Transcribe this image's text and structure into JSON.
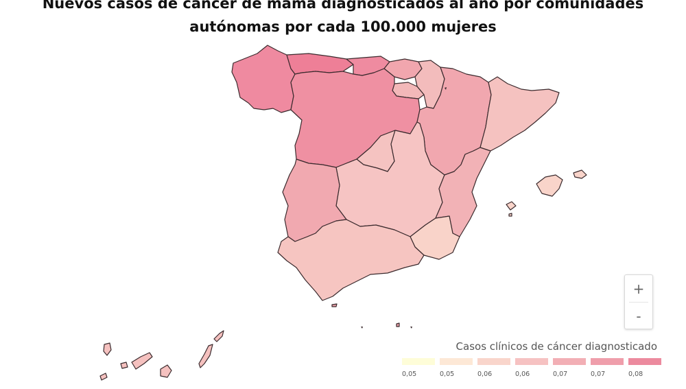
{
  "title": "Nuevos casos de cáncer de mama diagnosticados al año por comunidades autónomas por cada 100.000 mujeres",
  "zoom": {
    "in_label": "+",
    "out_label": "-"
  },
  "legend": {
    "title": "Casos clínicos de cáncer diagnosticado",
    "bins": [
      {
        "label": "0,05",
        "color": "#fefdd8"
      },
      {
        "label": "0,05",
        "color": "#fde8d6"
      },
      {
        "label": "0,06",
        "color": "#f9d5cb"
      },
      {
        "label": "0,06",
        "color": "#f6c2c2"
      },
      {
        "label": "0,07",
        "color": "#f2afb5"
      },
      {
        "label": "0,07",
        "color": "#ef9eab"
      },
      {
        "label": "0,08",
        "color": "#ec8a9e"
      }
    ]
  },
  "regions": [
    {
      "name": "Galicia",
      "color": "#ef8aa0"
    },
    {
      "name": "Asturias",
      "color": "#ee7f97"
    },
    {
      "name": "Cantabria",
      "color": "#ef8ba0"
    },
    {
      "name": "País Vasco",
      "color": "#f1a6ae"
    },
    {
      "name": "Navarra",
      "color": "#f3bcbc"
    },
    {
      "name": "La Rioja",
      "color": "#f3b8b9"
    },
    {
      "name": "Castilla y León",
      "color": "#ef90a2"
    },
    {
      "name": "Aragón",
      "color": "#f1a7af"
    },
    {
      "name": "Cataluña",
      "color": "#f5c2c0"
    },
    {
      "name": "Madrid",
      "color": "#f5c3c1"
    },
    {
      "name": "Castilla-La Mancha",
      "color": "#f6c4c3"
    },
    {
      "name": "Extremadura",
      "color": "#f1a9b0"
    },
    {
      "name": "Comunidad Valenciana",
      "color": "#f2b2b6"
    },
    {
      "name": "Murcia",
      "color": "#f9d3c9"
    },
    {
      "name": "Andalucía",
      "color": "#f6c5c1"
    },
    {
      "name": "Islas Baleares",
      "color": "#f9d4ca"
    },
    {
      "name": "Canarias",
      "color": "#f5c1bf"
    },
    {
      "name": "Ceuta",
      "color": "#e8a0a8"
    },
    {
      "name": "Melilla",
      "color": "#e8a0a8"
    }
  ]
}
